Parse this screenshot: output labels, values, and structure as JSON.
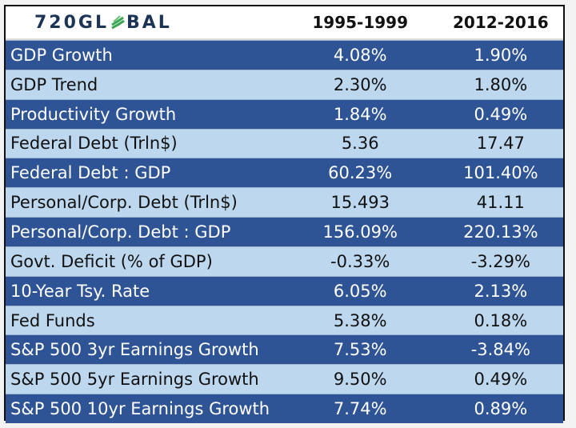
{
  "logo_text": "720GLOBAL",
  "chart_data": {
    "type": "table",
    "columns": [
      "",
      "1995-1999",
      "2012-2016"
    ],
    "rows": [
      {
        "label": "GDP Growth",
        "values": [
          "4.08%",
          "1.90%"
        ]
      },
      {
        "label": "GDP Trend",
        "values": [
          "2.30%",
          "1.80%"
        ]
      },
      {
        "label": "Productivity Growth",
        "values": [
          "1.84%",
          "0.49%"
        ]
      },
      {
        "label": "Federal Debt (Trln$)",
        "values": [
          "5.36",
          "17.47"
        ]
      },
      {
        "label": "Federal Debt : GDP",
        "values": [
          "60.23%",
          "101.40%"
        ]
      },
      {
        "label": "Personal/Corp. Debt (Trln$)",
        "values": [
          "15.493",
          "41.11"
        ]
      },
      {
        "label": "Personal/Corp. Debt : GDP",
        "values": [
          "156.09%",
          "220.13%"
        ]
      },
      {
        "label": "Govt. Deficit (% of GDP)",
        "values": [
          "-0.33%",
          "-3.29%"
        ]
      },
      {
        "label": "10-Year Tsy. Rate",
        "values": [
          "6.05%",
          "2.13%"
        ]
      },
      {
        "label": "Fed Funds",
        "values": [
          "5.38%",
          "0.18%"
        ]
      },
      {
        "label": "S&P 500 3yr Earnings Growth",
        "values": [
          "7.53%",
          "-3.84%"
        ]
      },
      {
        "label": "S&P 500 5yr Earnings Growth",
        "values": [
          "9.50%",
          "0.49%"
        ]
      },
      {
        "label": "S&P 500 10yr Earnings Growth",
        "values": [
          "7.74%",
          "0.89%"
        ]
      }
    ]
  },
  "colors": {
    "dark": "#2f5496",
    "light": "#bdd7ee",
    "logo": "#1c3557",
    "logo_accent": "#3aa655"
  }
}
